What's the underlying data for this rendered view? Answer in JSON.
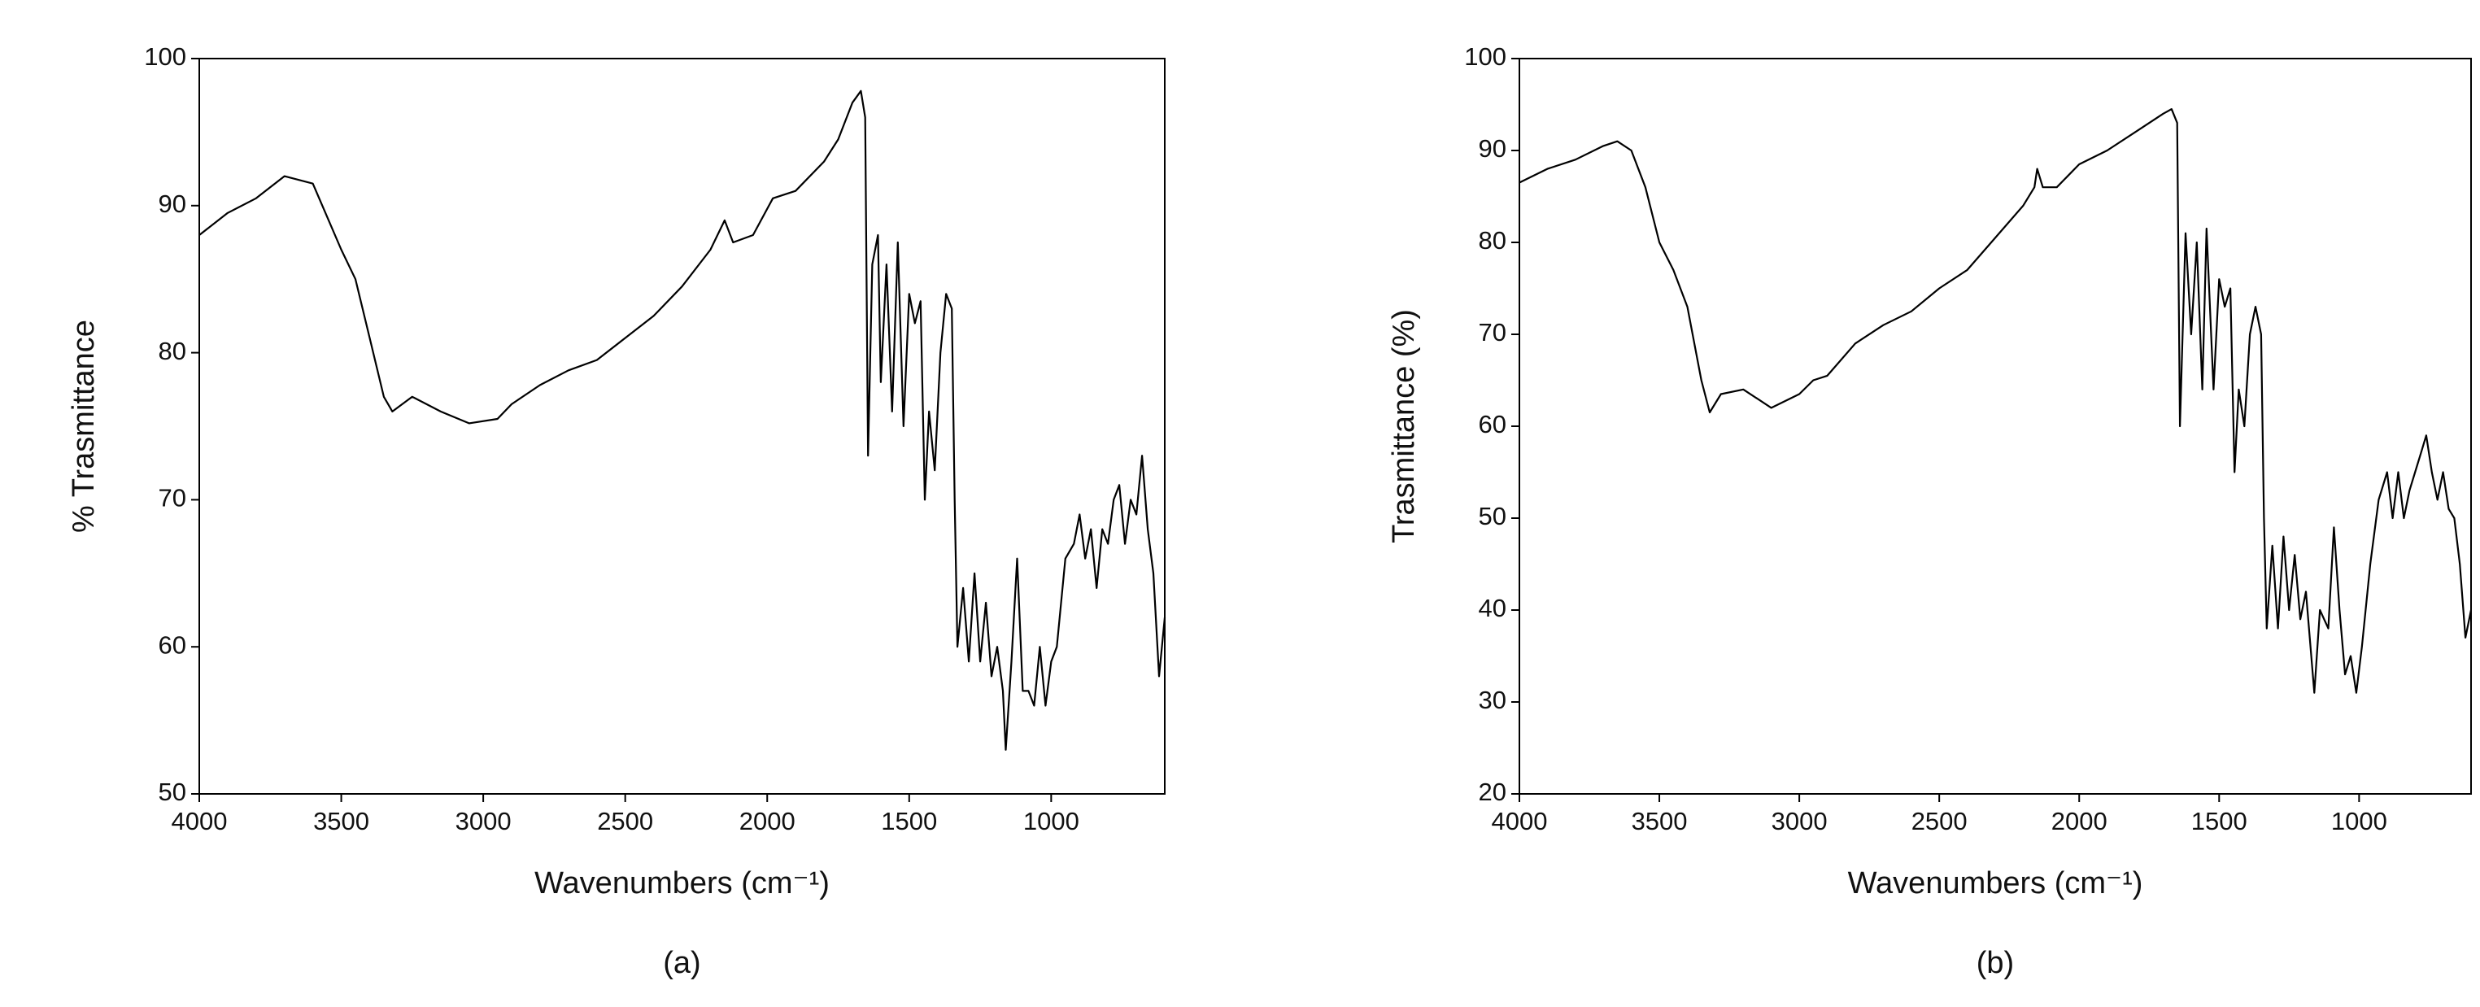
{
  "chart_data": [
    {
      "type": "line",
      "caption": "(a)",
      "x_label": "Wavenumbers (cm⁻¹)",
      "y_label": "% Trasmittance",
      "color": "#000000",
      "xlim": [
        4000,
        600
      ],
      "xticks": [
        4000,
        3500,
        3000,
        2500,
        2000,
        1500,
        1000
      ],
      "ylim": [
        50,
        100
      ],
      "yticks": [
        50,
        60,
        70,
        80,
        90,
        100
      ],
      "grid": false,
      "x": [
        4000,
        3900,
        3800,
        3700,
        3600,
        3500,
        3450,
        3400,
        3350,
        3320,
        3250,
        3150,
        3050,
        2950,
        2900,
        2800,
        2700,
        2600,
        2500,
        2400,
        2300,
        2200,
        2150,
        2120,
        2050,
        1980,
        1900,
        1800,
        1750,
        1700,
        1670,
        1655,
        1645,
        1630,
        1610,
        1600,
        1580,
        1560,
        1540,
        1520,
        1500,
        1480,
        1460,
        1445,
        1430,
        1410,
        1390,
        1370,
        1350,
        1340,
        1330,
        1310,
        1290,
        1270,
        1250,
        1230,
        1210,
        1190,
        1170,
        1160,
        1140,
        1120,
        1100,
        1080,
        1060,
        1040,
        1020,
        1000,
        980,
        950,
        920,
        900,
        880,
        860,
        840,
        820,
        800,
        780,
        760,
        740,
        720,
        700,
        680,
        660,
        640,
        620,
        600
      ],
      "values": [
        88,
        89.5,
        90.5,
        92,
        91.5,
        87,
        85,
        81,
        77,
        76,
        77,
        76,
        75.2,
        75.5,
        76.5,
        77.8,
        78.8,
        79.5,
        81,
        82.5,
        84.5,
        87,
        89,
        87.5,
        88,
        90.5,
        91,
        93,
        94.5,
        97,
        97.8,
        96,
        73,
        86,
        88,
        78,
        86,
        76,
        87.5,
        75,
        84,
        82,
        83.5,
        70,
        76,
        72,
        80,
        84,
        83,
        70,
        60,
        64,
        59,
        65,
        59,
        63,
        58,
        60,
        57,
        53,
        59,
        66,
        57,
        57,
        56,
        60,
        56,
        59,
        60,
        66,
        67,
        69,
        66,
        68,
        64,
        68,
        67,
        70,
        71,
        67,
        70,
        69,
        73,
        68,
        65,
        58,
        62
      ]
    },
    {
      "type": "line",
      "caption": "(b)",
      "x_label": "Wavenumbers (cm⁻¹)",
      "y_label": "Trasmittance (%)",
      "color": "#000000",
      "xlim": [
        4000,
        600
      ],
      "xticks": [
        4000,
        3500,
        3000,
        2500,
        2000,
        1500,
        1000
      ],
      "ylim": [
        20,
        100
      ],
      "yticks": [
        20,
        30,
        40,
        50,
        60,
        70,
        80,
        90,
        100
      ],
      "grid": false,
      "x": [
        4000,
        3900,
        3800,
        3700,
        3650,
        3600,
        3550,
        3500,
        3450,
        3400,
        3350,
        3320,
        3280,
        3200,
        3100,
        3000,
        2950,
        2900,
        2800,
        2700,
        2600,
        2500,
        2400,
        2300,
        2200,
        2160,
        2150,
        2130,
        2080,
        2000,
        1900,
        1800,
        1700,
        1670,
        1650,
        1640,
        1620,
        1600,
        1580,
        1560,
        1545,
        1520,
        1500,
        1480,
        1460,
        1445,
        1430,
        1410,
        1390,
        1370,
        1350,
        1340,
        1330,
        1310,
        1290,
        1270,
        1250,
        1230,
        1210,
        1190,
        1160,
        1140,
        1110,
        1090,
        1070,
        1050,
        1030,
        1010,
        990,
        960,
        930,
        900,
        880,
        860,
        840,
        820,
        800,
        780,
        760,
        740,
        720,
        700,
        680,
        660,
        640,
        620,
        600
      ],
      "values": [
        86.5,
        88,
        89,
        90.5,
        91,
        90,
        86,
        80,
        77,
        73,
        65,
        61.5,
        63.5,
        64,
        62,
        63.5,
        65,
        65.5,
        69,
        71,
        72.5,
        75,
        77,
        80.5,
        84,
        86,
        88,
        86,
        86,
        88.5,
        90,
        92,
        94,
        94.5,
        93,
        60,
        81,
        70,
        80,
        64,
        81.5,
        64,
        76,
        73,
        75,
        55,
        64,
        60,
        70,
        73,
        70,
        50,
        38,
        47,
        38,
        48,
        40,
        46,
        39,
        42,
        31,
        40,
        38,
        49,
        40,
        33,
        35,
        31,
        36,
        45,
        52,
        55,
        50,
        55,
        50,
        53,
        55,
        57,
        59,
        55,
        52,
        55,
        51,
        50,
        45,
        37,
        40
      ]
    }
  ]
}
